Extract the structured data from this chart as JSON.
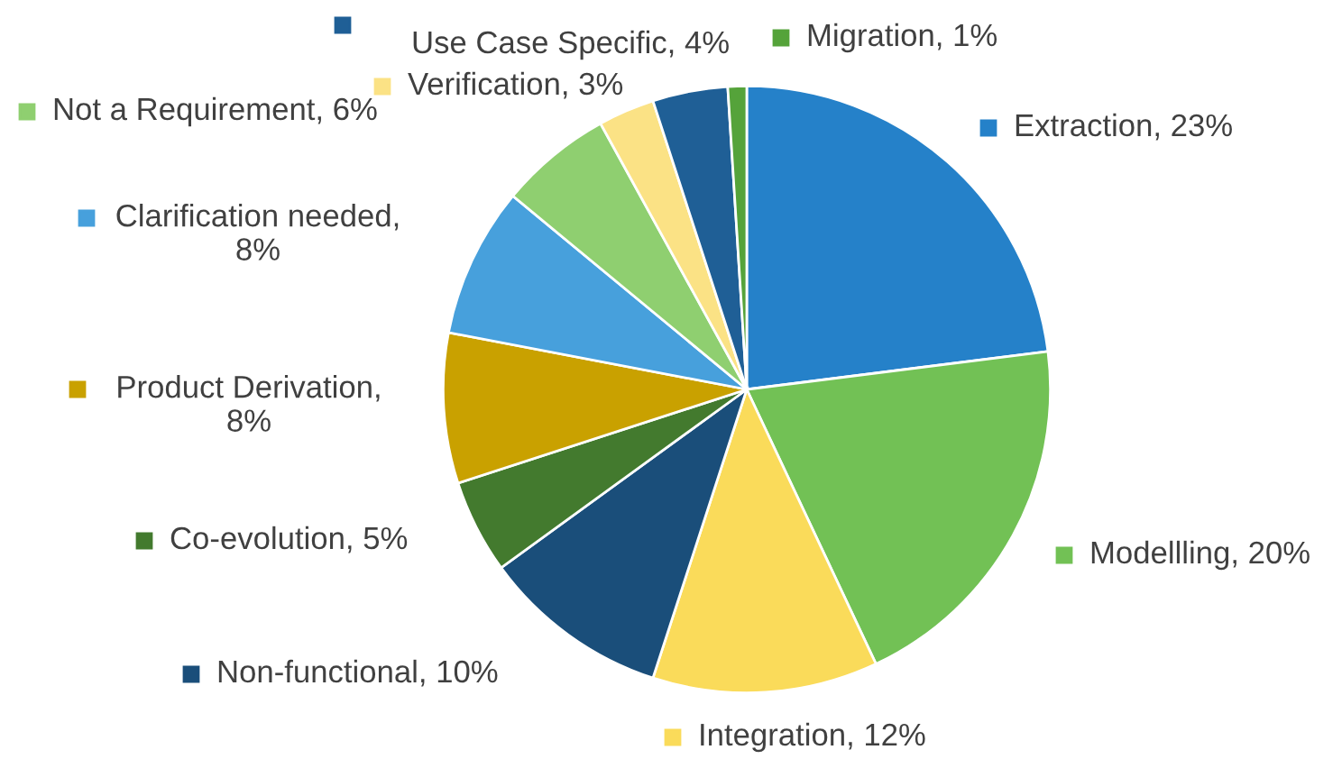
{
  "chart_data": {
    "type": "pie",
    "legend": "left",
    "categories": [
      "Extraction, 23%",
      "Modellling, 20%",
      "Integration, 12%",
      "Non-functional, 10%",
      "Co-evolution, 5%",
      "Product Derivation, 8%",
      "Clarification needed, 8%",
      "Not a Requirement, 6%",
      "Verification, 3%",
      "Use Case Specific, 4%",
      "Migration, 1%"
    ],
    "values": [
      23,
      20,
      12,
      10,
      5,
      8,
      8,
      6,
      3,
      4,
      1
    ],
    "colors": [
      "#2581c9",
      "#72c155",
      "#fadb5a",
      "#1a4e7a",
      "#437a2e",
      "#c9a100",
      "#47a0dc",
      "#8fcf70",
      "#fbe285",
      "#1f5f96",
      "#55a33a"
    ]
  }
}
